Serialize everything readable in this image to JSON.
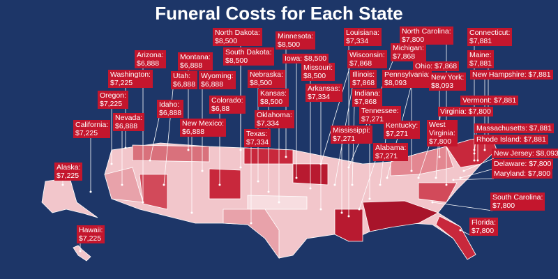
{
  "title": "Funeral Costs for Each State",
  "labels": [
    {
      "lines": [
        "North Dakota:",
        "$8,500"
      ]
    },
    {
      "lines": [
        "Minnesota:",
        "$8,500"
      ]
    },
    {
      "lines": [
        "Louisiana:",
        "$7,334"
      ]
    },
    {
      "lines": [
        "North Carolina:",
        "$7,800"
      ]
    },
    {
      "lines": [
        "Connecticut:",
        "$7,881"
      ]
    },
    {
      "lines": [
        "Arizona:",
        "$6,888"
      ]
    },
    {
      "lines": [
        "Montana:",
        "$6,888"
      ]
    },
    {
      "lines": [
        "South Dakota:",
        "$8,500"
      ]
    },
    {
      "lines": [
        "Iowa: $8,500"
      ]
    },
    {
      "lines": [
        "Missouri:",
        "$8,500"
      ]
    },
    {
      "lines": [
        "Wisconsin:",
        "$7,868"
      ]
    },
    {
      "lines": [
        "Michigan:",
        "$7,868"
      ]
    },
    {
      "lines": [
        "Maine:",
        "$7,881"
      ]
    },
    {
      "lines": [
        "Washington:",
        "$7,225"
      ]
    },
    {
      "lines": [
        "Utah:",
        "$6,888"
      ]
    },
    {
      "lines": [
        "Wyoming:",
        "$6,888"
      ]
    },
    {
      "lines": [
        "Nebraska:",
        "$8,500"
      ]
    },
    {
      "lines": [
        "Ohio: $7,868"
      ]
    },
    {
      "lines": [
        "Arkansas:",
        "$7,334"
      ]
    },
    {
      "lines": [
        "Illinois:",
        "$7,868"
      ]
    },
    {
      "lines": [
        "Pennsylvania:",
        "$8,093"
      ]
    },
    {
      "lines": [
        "New York:",
        "$8,093"
      ]
    },
    {
      "lines": [
        "New Hampshire: $7,881"
      ]
    },
    {
      "lines": [
        "Oregon:",
        "$7,225"
      ]
    },
    {
      "lines": [
        "Idaho:",
        "$6,888"
      ]
    },
    {
      "lines": [
        "Colorado:",
        "$6,88"
      ]
    },
    {
      "lines": [
        "Kansas:",
        "$8,500"
      ]
    },
    {
      "lines": [
        "Indiana:",
        "$7,868"
      ]
    },
    {
      "lines": [
        "Vermont: $7,881"
      ]
    },
    {
      "lines": [
        "Oklahoma:",
        "$7,334"
      ]
    },
    {
      "lines": [
        "Tennessee:",
        "$7,271"
      ]
    },
    {
      "lines": [
        "Virginia: $7,800"
      ]
    },
    {
      "lines": [
        "California:",
        "$7,225"
      ]
    },
    {
      "lines": [
        "Nevada:",
        "$6,888"
      ]
    },
    {
      "lines": [
        "New Mexico:",
        "$6,888"
      ]
    },
    {
      "lines": [
        "Kentucky:",
        "$7,271"
      ]
    },
    {
      "lines": [
        "West",
        "Virginia:",
        "$7,800"
      ]
    },
    {
      "lines": [
        "Massachusetts: $7,881"
      ]
    },
    {
      "lines": [
        "Texas:",
        "$7,334"
      ]
    },
    {
      "lines": [
        "Mississippi:",
        "$7,271"
      ]
    },
    {
      "lines": [
        "Rhode Island: $7,881"
      ]
    },
    {
      "lines": [
        "Alabama:",
        "$7,271"
      ]
    },
    {
      "lines": [
        "New Jersey: $8,093"
      ]
    },
    {
      "lines": [
        "Delaware: $7,800"
      ]
    },
    {
      "lines": [
        "Maryland: $7,800"
      ]
    },
    {
      "lines": [
        "Alaska:",
        "$7,225"
      ]
    },
    {
      "lines": [
        "South Carolina:",
        "$7,800"
      ]
    },
    {
      "lines": [
        "Hawaii:",
        "$7,225"
      ]
    },
    {
      "lines": [
        "Florida:",
        "$7,800"
      ]
    }
  ]
}
